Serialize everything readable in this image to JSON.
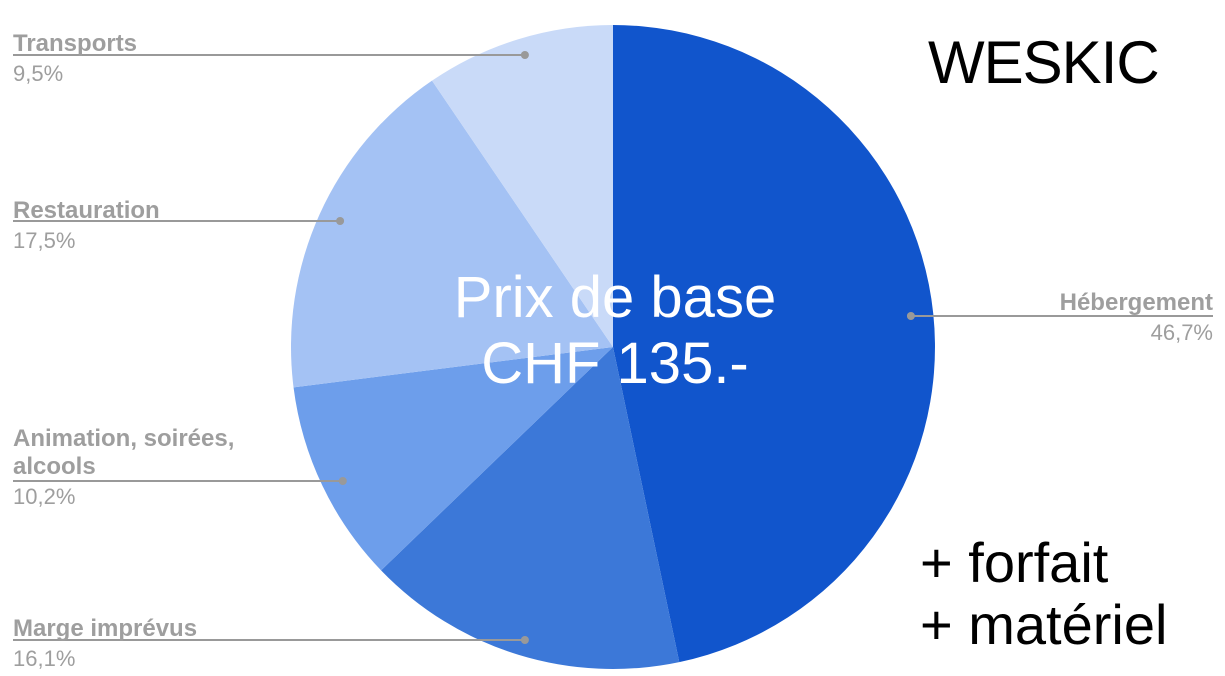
{
  "brand": "WESKIC",
  "center": {
    "line1": "Prix de base",
    "line2": "CHF 135.-"
  },
  "extras": {
    "line1": "+ forfait",
    "line2": "+ matériel"
  },
  "chart_data": {
    "type": "pie",
    "slices": [
      {
        "label": "Hébergement",
        "value": 46.7,
        "pct_label": "46,7%",
        "color": "#1155cc"
      },
      {
        "label": "Marge imprévus",
        "value": 16.1,
        "pct_label": "16,1%",
        "color": "#3c78d8"
      },
      {
        "label": "Animation, soirées, alcools",
        "value": 10.2,
        "pct_label": "10,2%",
        "color": "#6d9eeb"
      },
      {
        "label": "Restauration",
        "value": 17.5,
        "pct_label": "17,5%",
        "color": "#a4c2f4"
      },
      {
        "label": "Transports",
        "value": 9.5,
        "pct_label": "9,5%",
        "color": "#c9daf8"
      }
    ],
    "legend": "none",
    "label_color": "#9e9e9e",
    "leader_color": "#999999"
  }
}
